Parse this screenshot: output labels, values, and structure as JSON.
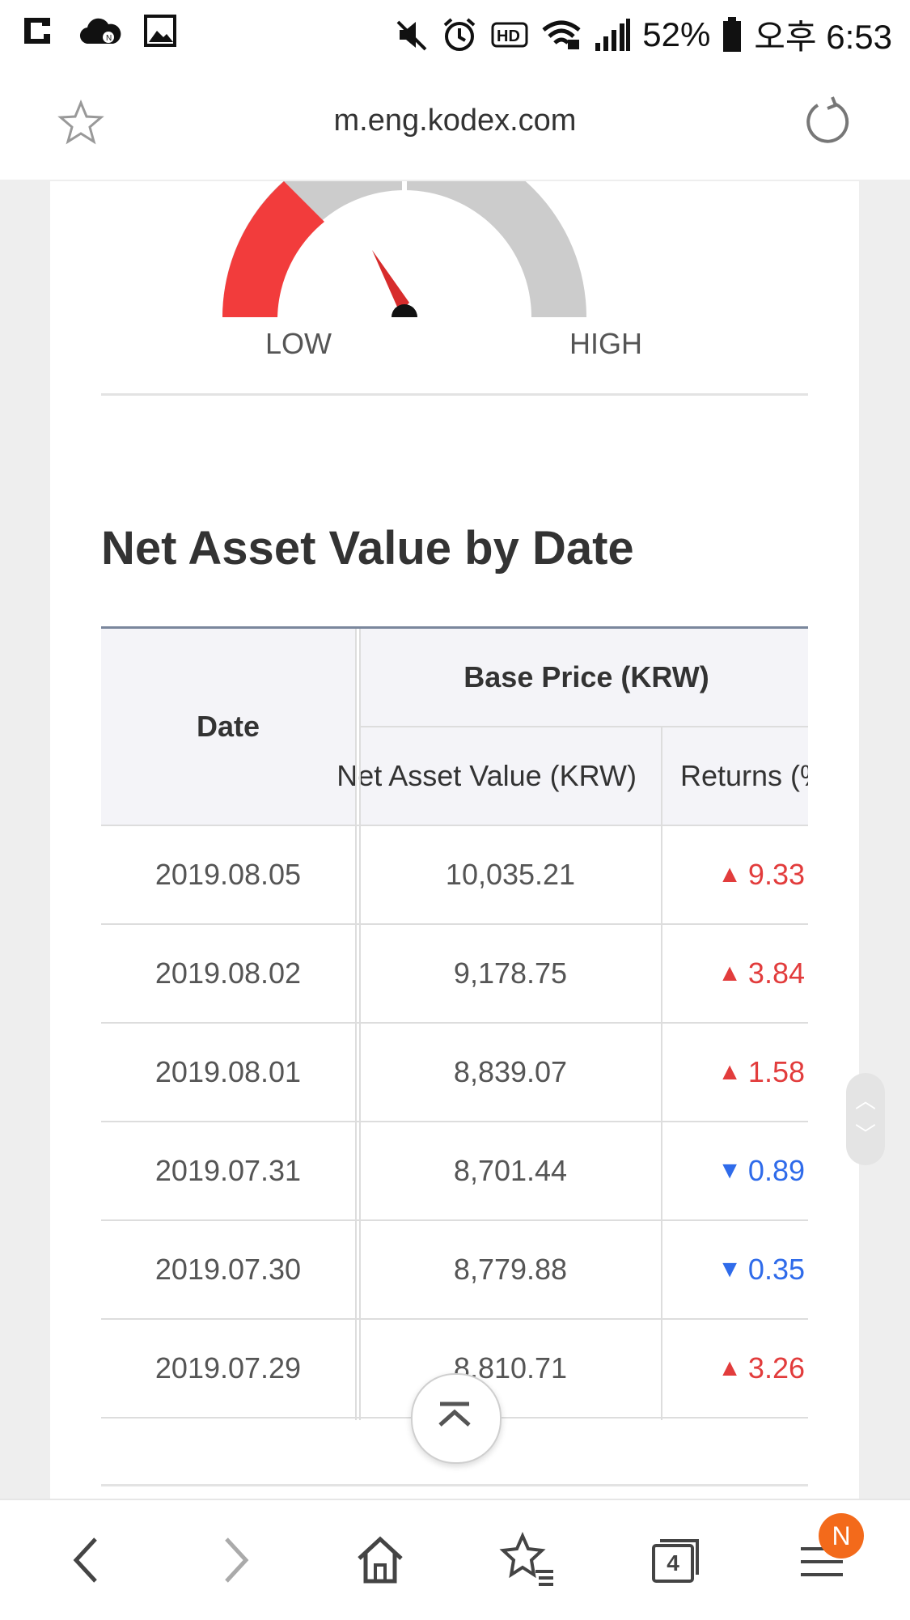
{
  "status_bar": {
    "battery": "52%",
    "time": "오후 6:53"
  },
  "browser": {
    "url": "m.eng.kodex.com"
  },
  "gauge": {
    "low_label": "LOW",
    "high_label": "HIGH"
  },
  "section": {
    "title": "Net Asset Value by Date"
  },
  "table": {
    "headers": {
      "date": "Date",
      "base_price": "Base Price (KRW)",
      "nav": "Net Asset Value (KRW)",
      "returns": "Returns (%)"
    },
    "rows": [
      {
        "date": "2019.08.05",
        "nav": "10,035.21",
        "direction": "up",
        "arrow": "▲",
        "returns": "9.33"
      },
      {
        "date": "2019.08.02",
        "nav": "9,178.75",
        "direction": "up",
        "arrow": "▲",
        "returns": "3.84"
      },
      {
        "date": "2019.08.01",
        "nav": "8,839.07",
        "direction": "up",
        "arrow": "▲",
        "returns": "1.58"
      },
      {
        "date": "2019.07.31",
        "nav": "8,701.44",
        "direction": "down",
        "arrow": "▼",
        "returns": "0.89"
      },
      {
        "date": "2019.07.30",
        "nav": "8,779.88",
        "direction": "down",
        "arrow": "▼",
        "returns": "0.35"
      },
      {
        "date": "2019.07.29",
        "nav": "8,810.71",
        "direction": "up",
        "arrow": "▲",
        "returns": "3.26"
      }
    ]
  },
  "bottom_nav": {
    "tabs_count": "4",
    "menu_badge": "N"
  },
  "colors": {
    "up": "#e23c3c",
    "down": "#2f6bea",
    "gauge_active": "#f23c3c",
    "gauge_inactive": "#cccccc"
  }
}
